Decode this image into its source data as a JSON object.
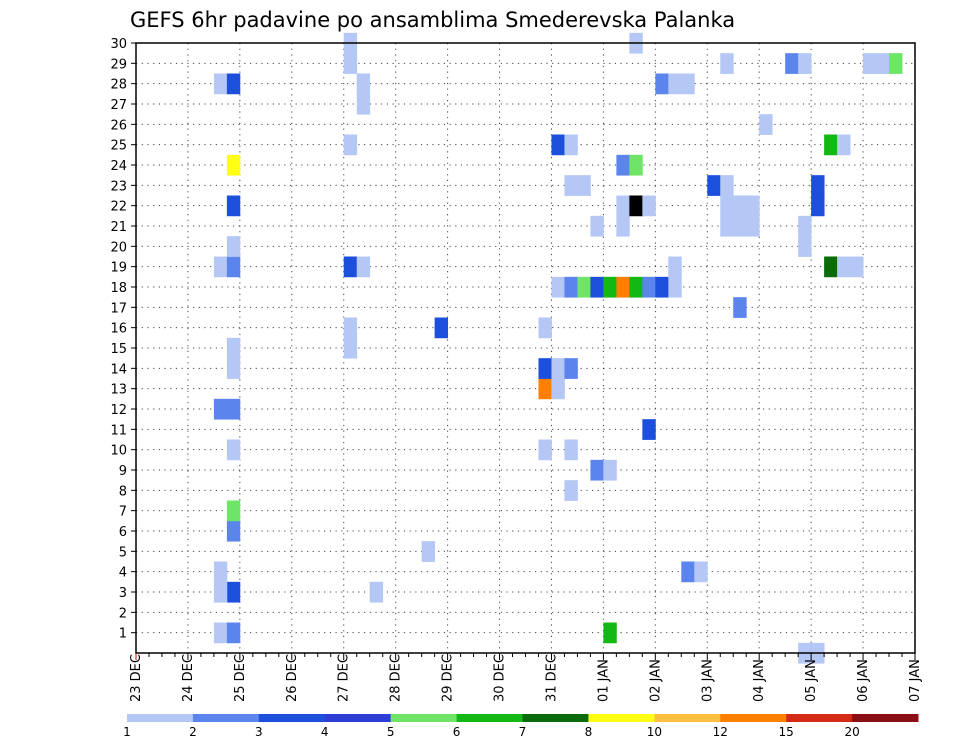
{
  "chart_data": {
    "type": "heatmap",
    "title": "GEFS 6hr padavine po ansamblima Smederevska Palanka",
    "x_tick_labels": [
      "23 DEC",
      "24 DEC",
      "25 DEC",
      "26 DEC",
      "27 DEC",
      "28 DEC",
      "29 DEC",
      "30 DEC",
      "31 DEC",
      "01 JAN",
      "02 JAN",
      "03 JAN",
      "04 JAN",
      "05 JAN",
      "06 JAN",
      "07 JAN"
    ],
    "y_tick_labels": [
      1,
      2,
      3,
      4,
      5,
      6,
      7,
      8,
      9,
      10,
      11,
      12,
      13,
      14,
      15,
      16,
      17,
      18,
      19,
      20,
      21,
      22,
      23,
      24,
      25,
      26,
      27,
      28,
      29,
      30
    ],
    "x_unit": "6-hour step (4 per day), index 0 = 23 DEC 00h",
    "y_range": [
      0,
      30
    ],
    "grid": true,
    "colorbar": {
      "levels": [
        "1",
        "2",
        "3",
        "4",
        "5",
        "6",
        "7",
        "8",
        "10",
        "12",
        "15",
        "20"
      ],
      "colors": [
        "#b4c7f5",
        "#5b84ed",
        "#1c4fdc",
        "#2f3dd7",
        "#6ee566",
        "#14b814",
        "#0a6b0a",
        "#ffff14",
        "#ffc040",
        "#ff8000",
        "#d42a14",
        "#8b0e14"
      ]
    },
    "cells": [
      {
        "x": 6,
        "y": 1,
        "v": 1
      },
      {
        "x": 7,
        "y": 1,
        "v": 2
      },
      {
        "x": 7,
        "y": 3,
        "v": 3
      },
      {
        "x": 6,
        "y": 3,
        "v": 1
      },
      {
        "x": 6,
        "y": 4,
        "v": 1
      },
      {
        "x": 7,
        "y": 6,
        "v": 2
      },
      {
        "x": 7,
        "y": 7,
        "v": 5
      },
      {
        "x": 7,
        "y": 10,
        "v": 1
      },
      {
        "x": 6,
        "y": 12,
        "v": 2
      },
      {
        "x": 7,
        "y": 12,
        "v": 2
      },
      {
        "x": 7,
        "y": 14,
        "v": 1
      },
      {
        "x": 7,
        "y": 15,
        "v": 1
      },
      {
        "x": 6,
        "y": 19,
        "v": 1
      },
      {
        "x": 7,
        "y": 19,
        "v": 2
      },
      {
        "x": 7,
        "y": 20,
        "v": 1
      },
      {
        "x": 7,
        "y": 22,
        "v": 3
      },
      {
        "x": 7,
        "y": 24,
        "v": 8
      },
      {
        "x": 6,
        "y": 28,
        "v": 1
      },
      {
        "x": 7,
        "y": 28,
        "v": 3
      },
      {
        "x": 16,
        "y": 15,
        "v": 1
      },
      {
        "x": 16,
        "y": 16,
        "v": 1
      },
      {
        "x": 16,
        "y": 19,
        "v": 3
      },
      {
        "x": 17,
        "y": 19,
        "v": 1
      },
      {
        "x": 16,
        "y": 25,
        "v": 1
      },
      {
        "x": 16,
        "y": 29,
        "v": 1
      },
      {
        "x": 16,
        "y": 30,
        "v": 1
      },
      {
        "x": 17,
        "y": 27,
        "v": 1
      },
      {
        "x": 17,
        "y": 28,
        "v": 1
      },
      {
        "x": 18,
        "y": 3,
        "v": 1
      },
      {
        "x": 22,
        "y": 5,
        "v": 1
      },
      {
        "x": 23,
        "y": 16,
        "v": 3
      },
      {
        "x": 31,
        "y": 10,
        "v": 1
      },
      {
        "x": 31,
        "y": 13,
        "v": 10
      },
      {
        "x": 31,
        "y": 14,
        "v": 3
      },
      {
        "x": 31,
        "y": 16,
        "v": 1
      },
      {
        "x": 32,
        "y": 13,
        "v": 1
      },
      {
        "x": 32,
        "y": 14,
        "v": 1
      },
      {
        "x": 32,
        "y": 18,
        "v": 1
      },
      {
        "x": 32,
        "y": 25,
        "v": 3
      },
      {
        "x": 33,
        "y": 8,
        "v": 1
      },
      {
        "x": 33,
        "y": 10,
        "v": 1
      },
      {
        "x": 33,
        "y": 14,
        "v": 2
      },
      {
        "x": 33,
        "y": 18,
        "v": 2
      },
      {
        "x": 33,
        "y": 23,
        "v": 1
      },
      {
        "x": 33,
        "y": 25,
        "v": 1
      },
      {
        "x": 34,
        "y": 18,
        "v": 5
      },
      {
        "x": 34,
        "y": 23,
        "v": 1
      },
      {
        "x": 35,
        "y": 9,
        "v": 2
      },
      {
        "x": 35,
        "y": 18,
        "v": 3
      },
      {
        "x": 35,
        "y": 21,
        "v": 1
      },
      {
        "x": 36,
        "y": 1,
        "v": 6
      },
      {
        "x": 36,
        "y": 9,
        "v": 1
      },
      {
        "x": 36,
        "y": 18,
        "v": 6
      },
      {
        "x": 37,
        "y": 18,
        "v": 10
      },
      {
        "x": 37,
        "y": 21,
        "v": 1
      },
      {
        "x": 37,
        "y": 22,
        "v": 1
      },
      {
        "x": 37,
        "y": 24,
        "v": 2
      },
      {
        "x": 38,
        "y": 18,
        "v": 6
      },
      {
        "x": 38,
        "y": 22,
        "v": 20
      },
      {
        "x": 38,
        "y": 24,
        "v": 5
      },
      {
        "x": 38,
        "y": 30,
        "v": 1
      },
      {
        "x": 39,
        "y": 11,
        "v": 3
      },
      {
        "x": 39,
        "y": 18,
        "v": 2
      },
      {
        "x": 39,
        "y": 22,
        "v": 1
      },
      {
        "x": 40,
        "y": 18,
        "v": 3
      },
      {
        "x": 40,
        "y": 28,
        "v": 2
      },
      {
        "x": 41,
        "y": 18,
        "v": 1
      },
      {
        "x": 41,
        "y": 19,
        "v": 1
      },
      {
        "x": 41,
        "y": 28,
        "v": 1
      },
      {
        "x": 42,
        "y": 28,
        "v": 1
      },
      {
        "x": 42,
        "y": 4,
        "v": 2
      },
      {
        "x": 43,
        "y": 4,
        "v": 1
      },
      {
        "x": 44,
        "y": 23,
        "v": 3
      },
      {
        "x": 45,
        "y": 21,
        "v": 1
      },
      {
        "x": 45,
        "y": 22,
        "v": 1
      },
      {
        "x": 45,
        "y": 23,
        "v": 1
      },
      {
        "x": 45,
        "y": 29,
        "v": 1
      },
      {
        "x": 46,
        "y": 17,
        "v": 2
      },
      {
        "x": 46,
        "y": 21,
        "v": 1
      },
      {
        "x": 46,
        "y": 22,
        "v": 1
      },
      {
        "x": 47,
        "y": 21,
        "v": 1
      },
      {
        "x": 47,
        "y": 22,
        "v": 1
      },
      {
        "x": 48,
        "y": 26,
        "v": 1
      },
      {
        "x": 50,
        "y": 29,
        "v": 2
      },
      {
        "x": 51,
        "y": 0,
        "v": 1
      },
      {
        "x": 51,
        "y": 20,
        "v": 1
      },
      {
        "x": 51,
        "y": 21,
        "v": 1
      },
      {
        "x": 51,
        "y": 29,
        "v": 1
      },
      {
        "x": 52,
        "y": 0,
        "v": 1
      },
      {
        "x": 52,
        "y": 22,
        "v": 3
      },
      {
        "x": 52,
        "y": 23,
        "v": 3
      },
      {
        "x": 53,
        "y": 19,
        "v": 7
      },
      {
        "x": 53,
        "y": 25,
        "v": 6
      },
      {
        "x": 54,
        "y": 19,
        "v": 1
      },
      {
        "x": 54,
        "y": 25,
        "v": 1
      },
      {
        "x": 55,
        "y": 19,
        "v": 1
      },
      {
        "x": 56,
        "y": 29,
        "v": 1
      },
      {
        "x": 57,
        "y": 29,
        "v": 1
      },
      {
        "x": 58,
        "y": 29,
        "v": 5
      }
    ]
  }
}
